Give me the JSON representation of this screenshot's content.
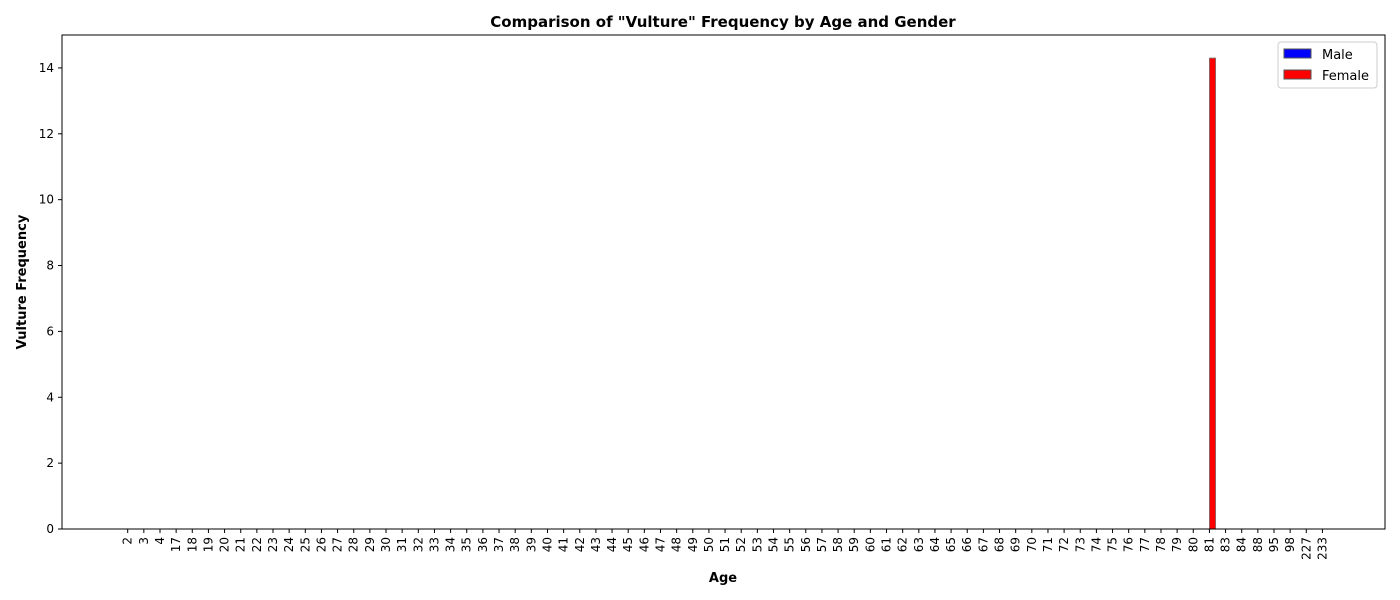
{
  "chart_data": {
    "type": "bar",
    "title": "Comparison of \"Vulture\" Frequency by Age and Gender",
    "xlabel": "Age",
    "ylabel": "Vulture Frequency",
    "ylim": [
      0,
      15
    ],
    "yticks": [
      0,
      2,
      4,
      6,
      8,
      10,
      12,
      14
    ],
    "grid": false,
    "legend_position": "top-right",
    "categories": [
      "2",
      "3",
      "4",
      "17",
      "18",
      "19",
      "20",
      "21",
      "22",
      "23",
      "24",
      "25",
      "26",
      "27",
      "28",
      "29",
      "30",
      "31",
      "32",
      "33",
      "34",
      "35",
      "36",
      "37",
      "38",
      "39",
      "40",
      "41",
      "42",
      "43",
      "44",
      "45",
      "46",
      "47",
      "48",
      "49",
      "50",
      "51",
      "52",
      "53",
      "54",
      "55",
      "56",
      "57",
      "58",
      "59",
      "60",
      "61",
      "62",
      "63",
      "64",
      "65",
      "66",
      "67",
      "68",
      "69",
      "70",
      "71",
      "72",
      "73",
      "74",
      "75",
      "76",
      "77",
      "78",
      "79",
      "80",
      "81",
      "83",
      "84",
      "88",
      "95",
      "98",
      "227",
      "233"
    ],
    "series": [
      {
        "name": "Male",
        "color": "#0000ff",
        "values": [
          0,
          0,
          0,
          0,
          0,
          0,
          0,
          0,
          0,
          0,
          0,
          0,
          0,
          0,
          0,
          0,
          0,
          0,
          0,
          0,
          0,
          0,
          0,
          0,
          0,
          0,
          0,
          0,
          0,
          0,
          0,
          0,
          0,
          0,
          0,
          0,
          0,
          0,
          0,
          0,
          0,
          0,
          0,
          0,
          0,
          0,
          0,
          0,
          0,
          0,
          0,
          0,
          0,
          0,
          0,
          0,
          0,
          0,
          0,
          0,
          0,
          0,
          0,
          0,
          0,
          0,
          0,
          0,
          0,
          0,
          0,
          0,
          0,
          0,
          0
        ]
      },
      {
        "name": "Female",
        "color": "#ff0000",
        "values": [
          0,
          0,
          0,
          0,
          0,
          0,
          0,
          0,
          0,
          0,
          0,
          0,
          0,
          0,
          0,
          0,
          0,
          0,
          0,
          0,
          0,
          0,
          0,
          0,
          0,
          0,
          0,
          0,
          0,
          0,
          0,
          0,
          0,
          0,
          0,
          0,
          0,
          0,
          0,
          0,
          0,
          0,
          0,
          0,
          0,
          0,
          0,
          0,
          0,
          0,
          0,
          0,
          0,
          0,
          0,
          0,
          0,
          0,
          0,
          0,
          0,
          0,
          0,
          0,
          0,
          0,
          0,
          14.3,
          0,
          0,
          0,
          0,
          0,
          0,
          0
        ]
      }
    ]
  }
}
